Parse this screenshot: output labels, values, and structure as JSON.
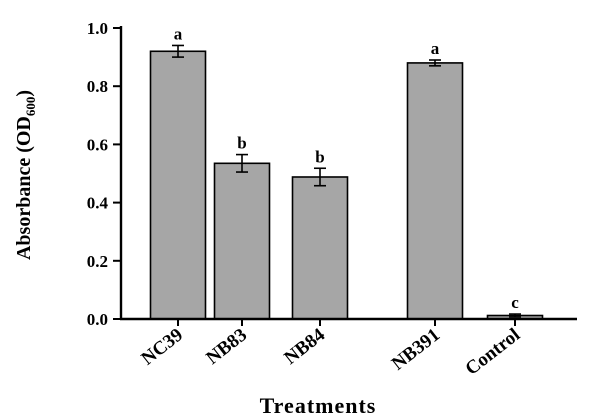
{
  "chart_data": {
    "type": "bar",
    "categories": [
      "NC39",
      "NB83",
      "NB84",
      "NB391",
      "Control"
    ],
    "values": [
      0.92,
      0.535,
      0.488,
      0.88,
      0.012
    ],
    "errors": [
      0.02,
      0.03,
      0.03,
      0.01,
      0.005
    ],
    "significance": [
      "a",
      "b",
      "b",
      "a",
      "c"
    ],
    "xlabel": "Treatments",
    "ylabel": {
      "main": "Absorbance (OD",
      "subscript": "600",
      "close": ")"
    },
    "yticks": [
      "0.0",
      "0.2",
      "0.4",
      "0.6",
      "0.8",
      "1.0"
    ],
    "ylim": [
      0,
      1.0
    ],
    "bar_color": "#a6a6a6",
    "edge_color": "#000000",
    "grid": false
  }
}
